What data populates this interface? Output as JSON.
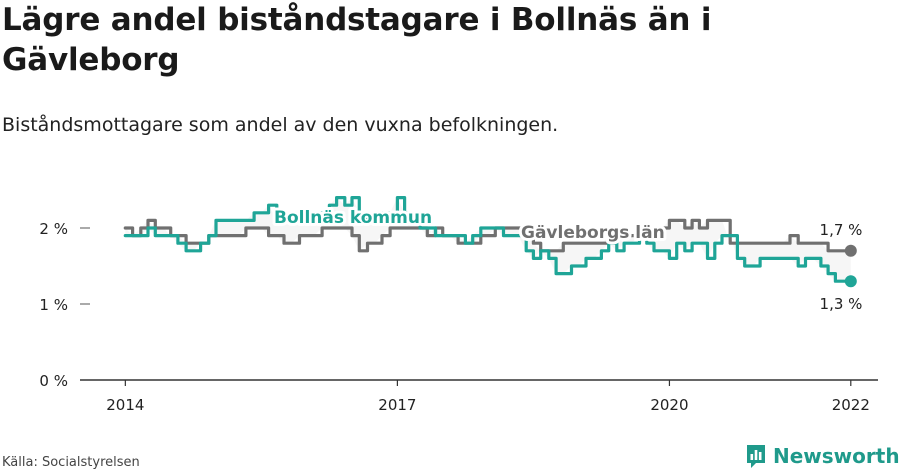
{
  "title": "Lägre andel biståndstagare i Bollnäs än i Gävleborg",
  "subtitle": "Biståndsmottagare som andel av den vuxna befolkningen.",
  "source": "Källa: Socialstyrelsen",
  "brand": {
    "name": "Newsworthy",
    "logo_icon": "newsworthy-logo-icon"
  },
  "colors": {
    "bollnas": "#1fa597",
    "gavleborg": "#707070",
    "axis": "#333333"
  },
  "chart_data": {
    "type": "line",
    "title": "Lägre andel biståndstagare i Bollnäs än i Gävleborg",
    "subtitle": "Biståndsmottagare som andel av den vuxna befolkningen.",
    "ylim": [
      0,
      2.6
    ],
    "y_ticks": [
      0,
      1,
      2
    ],
    "y_tick_labels": [
      "0 %",
      "1 %",
      "2 %"
    ],
    "x_ticks": [
      2014,
      2017,
      2020,
      2022
    ],
    "x_tick_labels": [
      "2014",
      "2017",
      "2020",
      "2022"
    ],
    "grid": false,
    "series": [
      {
        "name": "Gävleborgs län",
        "color": "#707070",
        "end_label": "1,7 %",
        "points": [
          [
            2014.0,
            2.0
          ],
          [
            2014.08,
            1.9
          ],
          [
            2014.17,
            2.0
          ],
          [
            2014.25,
            2.1
          ],
          [
            2014.33,
            2.0
          ],
          [
            2014.42,
            2.0
          ],
          [
            2014.5,
            1.9
          ],
          [
            2014.58,
            1.9
          ],
          [
            2014.67,
            1.8
          ],
          [
            2014.75,
            1.8
          ],
          [
            2014.83,
            1.8
          ],
          [
            2014.92,
            1.9
          ],
          [
            2015.0,
            1.9
          ],
          [
            2015.08,
            1.9
          ],
          [
            2015.17,
            1.9
          ],
          [
            2015.25,
            1.9
          ],
          [
            2015.33,
            2.0
          ],
          [
            2015.42,
            2.0
          ],
          [
            2015.5,
            2.0
          ],
          [
            2015.58,
            1.9
          ],
          [
            2015.67,
            1.9
          ],
          [
            2015.75,
            1.8
          ],
          [
            2015.83,
            1.8
          ],
          [
            2015.92,
            1.9
          ],
          [
            2016.0,
            1.9
          ],
          [
            2016.08,
            1.9
          ],
          [
            2016.17,
            2.0
          ],
          [
            2016.25,
            2.0
          ],
          [
            2016.33,
            2.0
          ],
          [
            2016.42,
            2.0
          ],
          [
            2016.5,
            1.9
          ],
          [
            2016.58,
            1.7
          ],
          [
            2016.67,
            1.8
          ],
          [
            2016.75,
            1.8
          ],
          [
            2016.83,
            1.9
          ],
          [
            2016.92,
            2.0
          ],
          [
            2017.0,
            2.0
          ],
          [
            2017.08,
            2.0
          ],
          [
            2017.17,
            2.0
          ],
          [
            2017.25,
            2.0
          ],
          [
            2017.33,
            1.9
          ],
          [
            2017.42,
            2.0
          ],
          [
            2017.5,
            1.9
          ],
          [
            2017.58,
            1.9
          ],
          [
            2017.67,
            1.8
          ],
          [
            2017.75,
            1.8
          ],
          [
            2017.83,
            1.8
          ],
          [
            2017.92,
            1.9
          ],
          [
            2018.0,
            1.9
          ],
          [
            2018.08,
            2.0
          ],
          [
            2018.17,
            2.0
          ],
          [
            2018.25,
            2.0
          ],
          [
            2018.33,
            2.0
          ],
          [
            2018.42,
            1.9
          ],
          [
            2018.5,
            1.8
          ],
          [
            2018.58,
            1.7
          ],
          [
            2018.67,
            1.7
          ],
          [
            2018.75,
            1.7
          ],
          [
            2018.83,
            1.8
          ],
          [
            2018.92,
            1.8
          ],
          [
            2019.0,
            1.8
          ],
          [
            2019.08,
            1.8
          ],
          [
            2019.17,
            1.8
          ],
          [
            2019.25,
            1.8
          ],
          [
            2019.33,
            1.9
          ],
          [
            2019.42,
            1.9
          ],
          [
            2019.5,
            1.9
          ],
          [
            2019.58,
            1.9
          ],
          [
            2019.67,
            2.0
          ],
          [
            2019.75,
            2.0
          ],
          [
            2019.83,
            2.0
          ],
          [
            2019.92,
            2.0
          ],
          [
            2020.0,
            2.1
          ],
          [
            2020.08,
            2.1
          ],
          [
            2020.17,
            2.0
          ],
          [
            2020.25,
            2.1
          ],
          [
            2020.33,
            2.0
          ],
          [
            2020.42,
            2.1
          ],
          [
            2020.5,
            2.1
          ],
          [
            2020.58,
            2.1
          ],
          [
            2020.67,
            1.8
          ],
          [
            2020.75,
            1.8
          ],
          [
            2020.83,
            1.8
          ],
          [
            2020.92,
            1.8
          ],
          [
            2021.0,
            1.8
          ],
          [
            2021.08,
            1.8
          ],
          [
            2021.17,
            1.8
          ],
          [
            2021.25,
            1.8
          ],
          [
            2021.33,
            1.9
          ],
          [
            2021.42,
            1.8
          ],
          [
            2021.5,
            1.8
          ],
          [
            2021.58,
            1.8
          ],
          [
            2021.67,
            1.8
          ],
          [
            2021.75,
            1.7
          ],
          [
            2021.83,
            1.7
          ],
          [
            2021.92,
            1.7
          ],
          [
            2022.0,
            1.7
          ]
        ]
      },
      {
        "name": "Bollnäs kommun",
        "color": "#1fa597",
        "end_label": "1,3 %",
        "points": [
          [
            2014.0,
            1.9
          ],
          [
            2014.08,
            1.9
          ],
          [
            2014.17,
            1.9
          ],
          [
            2014.25,
            2.0
          ],
          [
            2014.33,
            1.9
          ],
          [
            2014.42,
            1.9
          ],
          [
            2014.5,
            1.9
          ],
          [
            2014.58,
            1.8
          ],
          [
            2014.67,
            1.7
          ],
          [
            2014.75,
            1.7
          ],
          [
            2014.83,
            1.8
          ],
          [
            2014.92,
            1.9
          ],
          [
            2015.0,
            2.1
          ],
          [
            2015.08,
            2.1
          ],
          [
            2015.17,
            2.1
          ],
          [
            2015.25,
            2.1
          ],
          [
            2015.33,
            2.1
          ],
          [
            2015.42,
            2.2
          ],
          [
            2015.5,
            2.2
          ],
          [
            2015.58,
            2.3
          ],
          [
            2015.67,
            2.1
          ],
          [
            2015.75,
            2.1
          ],
          [
            2015.83,
            2.1
          ],
          [
            2015.92,
            2.1
          ],
          [
            2016.0,
            2.2
          ],
          [
            2016.08,
            2.2
          ],
          [
            2016.17,
            2.2
          ],
          [
            2016.25,
            2.3
          ],
          [
            2016.33,
            2.4
          ],
          [
            2016.42,
            2.3
          ],
          [
            2016.5,
            2.4
          ],
          [
            2016.58,
            2.2
          ],
          [
            2016.67,
            2.1
          ],
          [
            2016.75,
            2.2
          ],
          [
            2016.83,
            2.2
          ],
          [
            2016.92,
            2.2
          ],
          [
            2017.0,
            2.4
          ],
          [
            2017.08,
            2.2
          ],
          [
            2017.17,
            2.1
          ],
          [
            2017.25,
            2.0
          ],
          [
            2017.33,
            2.0
          ],
          [
            2017.42,
            1.9
          ],
          [
            2017.5,
            1.9
          ],
          [
            2017.58,
            1.9
          ],
          [
            2017.67,
            1.9
          ],
          [
            2017.75,
            1.8
          ],
          [
            2017.83,
            1.9
          ],
          [
            2017.92,
            2.0
          ],
          [
            2018.0,
            2.0
          ],
          [
            2018.08,
            2.0
          ],
          [
            2018.17,
            1.9
          ],
          [
            2018.25,
            1.9
          ],
          [
            2018.33,
            1.9
          ],
          [
            2018.42,
            1.7
          ],
          [
            2018.5,
            1.6
          ],
          [
            2018.58,
            1.7
          ],
          [
            2018.67,
            1.6
          ],
          [
            2018.75,
            1.4
          ],
          [
            2018.83,
            1.4
          ],
          [
            2018.92,
            1.5
          ],
          [
            2019.0,
            1.5
          ],
          [
            2019.08,
            1.6
          ],
          [
            2019.17,
            1.6
          ],
          [
            2019.25,
            1.7
          ],
          [
            2019.33,
            1.8
          ],
          [
            2019.42,
            1.7
          ],
          [
            2019.5,
            1.8
          ],
          [
            2019.58,
            1.8
          ],
          [
            2019.67,
            1.9
          ],
          [
            2019.75,
            1.8
          ],
          [
            2019.83,
            1.7
          ],
          [
            2019.92,
            1.7
          ],
          [
            2020.0,
            1.6
          ],
          [
            2020.08,
            1.8
          ],
          [
            2020.17,
            1.7
          ],
          [
            2020.25,
            1.8
          ],
          [
            2020.33,
            1.8
          ],
          [
            2020.42,
            1.6
          ],
          [
            2020.5,
            1.8
          ],
          [
            2020.58,
            1.9
          ],
          [
            2020.67,
            1.9
          ],
          [
            2020.75,
            1.6
          ],
          [
            2020.83,
            1.5
          ],
          [
            2020.92,
            1.5
          ],
          [
            2021.0,
            1.6
          ],
          [
            2021.08,
            1.6
          ],
          [
            2021.17,
            1.6
          ],
          [
            2021.25,
            1.6
          ],
          [
            2021.33,
            1.6
          ],
          [
            2021.42,
            1.5
          ],
          [
            2021.5,
            1.6
          ],
          [
            2021.58,
            1.6
          ],
          [
            2021.67,
            1.5
          ],
          [
            2021.75,
            1.4
          ],
          [
            2021.83,
            1.3
          ],
          [
            2021.92,
            1.3
          ],
          [
            2022.0,
            1.3
          ]
        ]
      }
    ]
  }
}
